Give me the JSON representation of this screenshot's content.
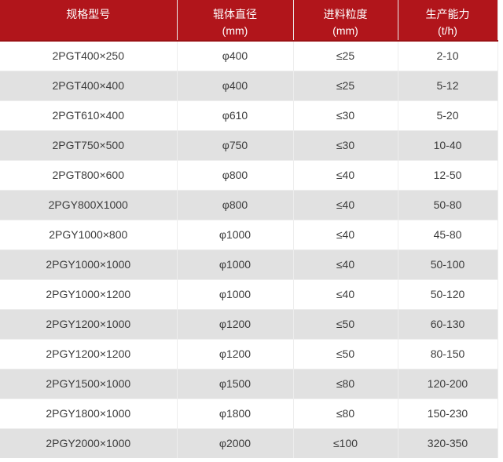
{
  "colors": {
    "header_bg": "#b1151b",
    "header_border": "#9b1115",
    "header_text": "#ffffff",
    "row_alt_bg": "#e1e1e1",
    "row_bg": "#ffffff",
    "body_text": "#3c3c3c",
    "grid_line": "#ededed"
  },
  "table": {
    "columns": [
      {
        "label": "规格型号",
        "unit": ""
      },
      {
        "label": "辊体直径",
        "unit": "(mm)"
      },
      {
        "label": "进料粒度",
        "unit": "(mm)"
      },
      {
        "label": "生产能力",
        "unit": "(t/h)"
      }
    ],
    "rows": [
      [
        "2PGT400×250",
        "φ400",
        "≤25",
        "2-10"
      ],
      [
        "2PGT400×400",
        "φ400",
        "≤25",
        "5-12"
      ],
      [
        "2PGT610×400",
        "φ610",
        "≤30",
        "5-20"
      ],
      [
        "2PGT750×500",
        "φ750",
        "≤30",
        "10-40"
      ],
      [
        "2PGT800×600",
        "φ800",
        "≤40",
        "12-50"
      ],
      [
        "2PGY800X1000",
        "φ800",
        "≤40",
        "50-80"
      ],
      [
        "2PGY1000×800",
        "φ1000",
        "≤40",
        "45-80"
      ],
      [
        "2PGY1000×1000",
        "φ1000",
        "≤40",
        "50-100"
      ],
      [
        "2PGY1000×1200",
        "φ1000",
        "≤40",
        "50-120"
      ],
      [
        "2PGY1200×1000",
        "φ1200",
        "≤50",
        "60-130"
      ],
      [
        "2PGY1200×1200",
        "φ1200",
        "≤50",
        "80-150"
      ],
      [
        "2PGY1500×1000",
        "φ1500",
        "≤80",
        "120-200"
      ],
      [
        "2PGY1800×1000",
        "φ1800",
        "≤80",
        "150-230"
      ],
      [
        "2PGY2000×1000",
        "φ2000",
        "≤100",
        "320-350"
      ]
    ]
  }
}
